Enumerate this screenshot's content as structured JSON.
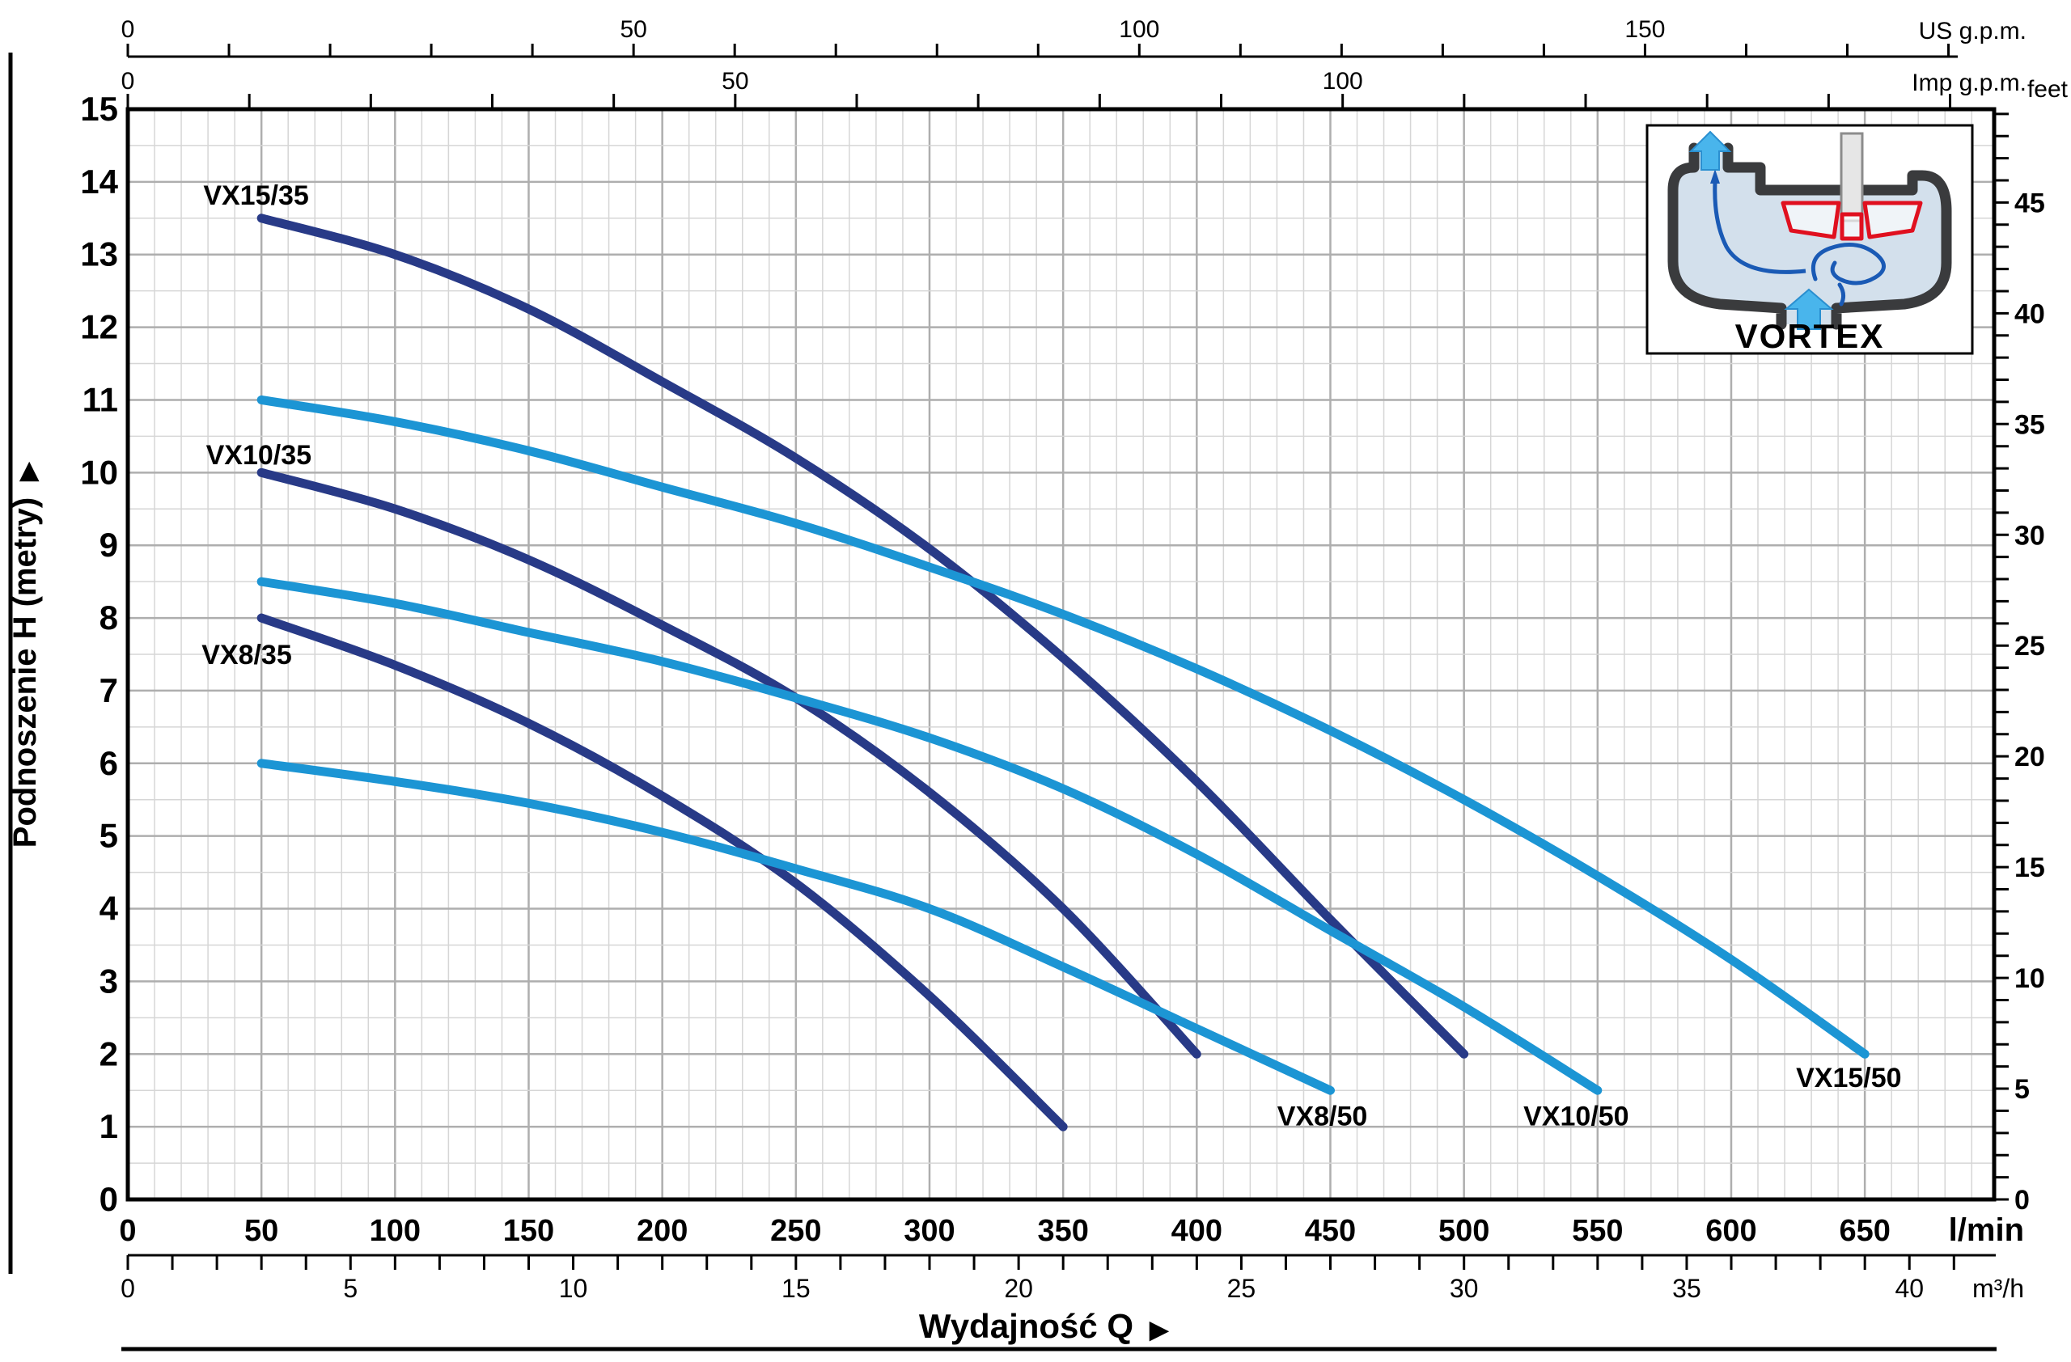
{
  "chart_data": {
    "type": "line",
    "title": "",
    "xlabel": "Wydajność Q",
    "xlabel_arrow": "▶",
    "ylabel": "Podnoszenie H (metry)",
    "ylabel_arrow": "▶",
    "grid": "on",
    "axes": {
      "lmin": {
        "unit": "l/min",
        "label_values": [
          0,
          50,
          100,
          150,
          200,
          250,
          300,
          350,
          400,
          450,
          500,
          550,
          600,
          650
        ],
        "minor_step": 10,
        "major_step": 50,
        "range": [
          0,
          698
        ]
      },
      "m3h": {
        "unit": "m³/h",
        "label_values": [
          0,
          5,
          10,
          15,
          20,
          25,
          30,
          35,
          40
        ],
        "tick_step": 1,
        "max_tick": 41
      },
      "us_gpm": {
        "unit": "US g.p.m.",
        "label_values": [
          0,
          50,
          100,
          150
        ],
        "tick_step": 10,
        "max_tick": 180
      },
      "imp_gpm": {
        "unit": "Imp g.p.m.",
        "label_values": [
          0,
          50,
          100
        ],
        "tick_step": 10,
        "max_tick": 150
      },
      "metry": {
        "min": 0,
        "max": 15,
        "label_step": 1,
        "minor_step": 0.5,
        "label_values": [
          0,
          1,
          2,
          3,
          4,
          5,
          6,
          7,
          8,
          9,
          10,
          11,
          12,
          13,
          14,
          15
        ]
      },
      "feet": {
        "unit": "feet",
        "label_values": [
          0,
          5,
          10,
          15,
          20,
          25,
          30,
          35,
          40,
          45
        ],
        "tick_step": 1,
        "max_tick": 49
      }
    },
    "series": [
      {
        "name": "VX15/35",
        "color": "#283a87",
        "label_pos": [
          48,
          13.82
        ],
        "points": [
          [
            50,
            13.5
          ],
          [
            100,
            13.0
          ],
          [
            150,
            12.25
          ],
          [
            200,
            11.25
          ],
          [
            250,
            10.2
          ],
          [
            300,
            8.95
          ],
          [
            350,
            7.45
          ],
          [
            400,
            5.75
          ],
          [
            450,
            3.85
          ],
          [
            500,
            2.0
          ]
        ]
      },
      {
        "name": "VX10/35",
        "color": "#283a87",
        "label_pos": [
          49,
          10.25
        ],
        "points": [
          [
            50,
            10.0
          ],
          [
            100,
            9.5
          ],
          [
            150,
            8.8
          ],
          [
            200,
            7.9
          ],
          [
            250,
            6.9
          ],
          [
            300,
            5.6
          ],
          [
            350,
            4.0
          ],
          [
            400,
            2.0
          ]
        ]
      },
      {
        "name": "VX8/35",
        "color": "#283a87",
        "label_pos": [
          44.5,
          7.5
        ],
        "points": [
          [
            50,
            8.0
          ],
          [
            100,
            7.35
          ],
          [
            150,
            6.55
          ],
          [
            200,
            5.55
          ],
          [
            250,
            4.35
          ],
          [
            300,
            2.8
          ],
          [
            350,
            1.0
          ]
        ]
      },
      {
        "name": "VX8/50",
        "color": "#1c95d4",
        "label_pos": [
          447,
          1.15
        ],
        "points": [
          [
            50,
            6.0
          ],
          [
            100,
            5.75
          ],
          [
            150,
            5.45
          ],
          [
            200,
            5.05
          ],
          [
            250,
            4.55
          ],
          [
            300,
            4.0
          ],
          [
            350,
            3.2
          ],
          [
            400,
            2.35
          ],
          [
            450,
            1.5
          ]
        ]
      },
      {
        "name": "VX10/50",
        "color": "#1c95d4",
        "label_pos": [
          542,
          1.15
        ],
        "points": [
          [
            50,
            8.5
          ],
          [
            100,
            8.2
          ],
          [
            150,
            7.8
          ],
          [
            200,
            7.4
          ],
          [
            250,
            6.9
          ],
          [
            300,
            6.35
          ],
          [
            350,
            5.65
          ],
          [
            400,
            4.75
          ],
          [
            450,
            3.7
          ],
          [
            500,
            2.65
          ],
          [
            550,
            1.5
          ]
        ]
      },
      {
        "name": "VX15/50",
        "color": "#1c95d4",
        "label_pos": [
          644,
          1.68
        ],
        "points": [
          [
            50,
            11.0
          ],
          [
            100,
            10.7
          ],
          [
            150,
            10.3
          ],
          [
            200,
            9.8
          ],
          [
            250,
            9.3
          ],
          [
            300,
            8.7
          ],
          [
            350,
            8.05
          ],
          [
            400,
            7.3
          ],
          [
            450,
            6.45
          ],
          [
            500,
            5.5
          ],
          [
            550,
            4.45
          ],
          [
            600,
            3.3
          ],
          [
            650,
            2.0
          ]
        ]
      }
    ]
  },
  "inset": {
    "caption": "VORTEX"
  },
  "colors": {
    "curve_navy": "#283a87",
    "curve_blue": "#1c95d4",
    "grid_minor": "#d6d6d6",
    "grid_major": "#aeaeae",
    "axis": "#000000",
    "inset_casing": "#3a3b3d",
    "inset_fluid": "#d3e0ec",
    "inset_impeller": "#e0101f",
    "inset_arrow": "#49b5ec",
    "inset_swirl": "#1a5ab5"
  }
}
